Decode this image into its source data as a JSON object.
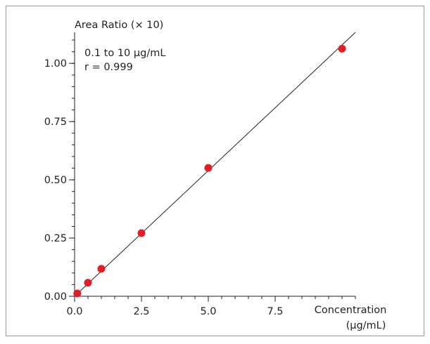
{
  "chart_data": {
    "type": "scatter",
    "ylabel": "Area Ratio (× 10)",
    "xlabel_line1": "Concentration",
    "xlabel_line2": "(µg/mL)",
    "annotation_range": "0.1 to 10 µg/mL",
    "annotation_r": "r = 0.999",
    "xlim": [
      0,
      10.5
    ],
    "ylim": [
      0,
      1.1333
    ],
    "x_ticks": [
      0.0,
      2.5,
      5.0,
      7.5
    ],
    "x_tick_labels": [
      "0.0",
      "2.5",
      "5.0",
      "7.5"
    ],
    "x_minor_step": 0.5,
    "y_ticks": [
      0.0,
      0.25,
      0.5,
      0.75,
      1.0
    ],
    "y_tick_labels": [
      "0.00",
      "0.25",
      "0.50",
      "0.75",
      "1.00"
    ],
    "y_minor_step": 0.05,
    "grid": false,
    "series": [
      {
        "x": [
          0.1,
          0.5,
          1.0,
          2.5,
          5.0,
          10.0
        ],
        "y": [
          0.012,
          0.058,
          0.118,
          0.271,
          0.551,
          1.063
        ]
      }
    ],
    "fit_line": {
      "x": [
        0.0,
        10.5
      ],
      "y": [
        0.0,
        1.133
      ]
    },
    "colors": {
      "points": "#e31e24",
      "line": "#222222",
      "axis": "#222222",
      "frame": "#999999"
    }
  }
}
